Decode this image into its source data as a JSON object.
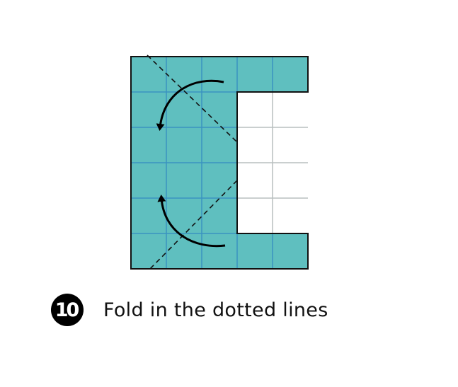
{
  "step": {
    "number": "10",
    "instruction": "Fold in the dotted lines"
  },
  "diagram": {
    "grid": {
      "columns": 5,
      "rows": 6,
      "colors": {
        "teal": "#5fbfbf",
        "white": "#ffffff",
        "grid_line_on_teal": "#3a93c0",
        "grid_line_on_white": "#b9bfbf",
        "border": "#111111"
      },
      "filled_cells": [
        [
          1,
          1,
          1,
          1,
          1
        ],
        [
          1,
          1,
          1,
          0,
          0
        ],
        [
          1,
          1,
          1,
          0,
          0
        ],
        [
          1,
          1,
          1,
          0,
          0
        ],
        [
          1,
          1,
          1,
          0,
          0
        ],
        [
          1,
          1,
          1,
          1,
          1
        ]
      ]
    },
    "fold_lines": [
      "upper-diagonal-fold",
      "lower-diagonal-fold"
    ],
    "arrows": [
      "upper-fold-arrow",
      "lower-fold-arrow"
    ]
  }
}
